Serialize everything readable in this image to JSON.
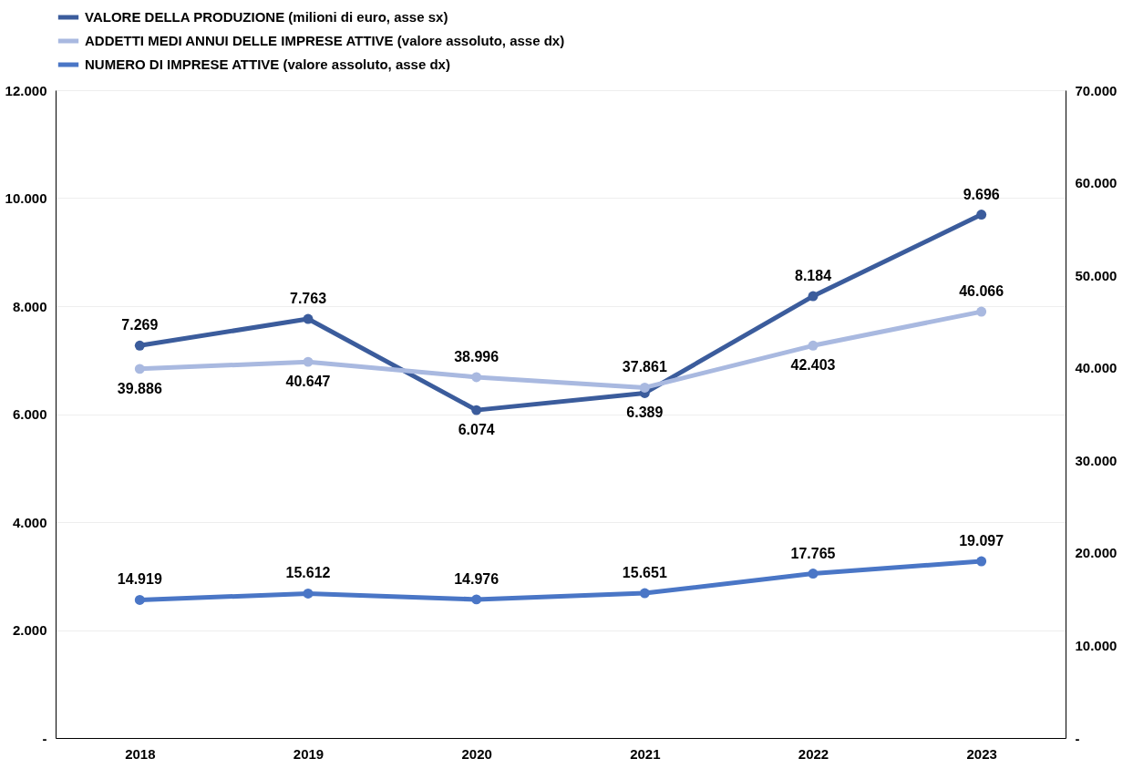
{
  "chart_data": {
    "type": "line",
    "categories": [
      "2018",
      "2019",
      "2020",
      "2021",
      "2022",
      "2023"
    ],
    "series": [
      {
        "name": "VALORE DELLA PRODUZIONE (milioni di euro, asse sx)",
        "color": "#3b5c9c",
        "values": [
          7269,
          7763,
          6074,
          6389,
          8184,
          9696
        ],
        "value_labels": [
          "7.269",
          "7.763",
          "6.074",
          "6.389",
          "8.184",
          "9.696"
        ]
      },
      {
        "name": "ADDETTI MEDI ANNUI DELLE IMPRESE ATTIVE (valore assoluto, asse dx)",
        "color": "#a9b9e0",
        "axis": "y2",
        "values": [
          39886,
          40647,
          38996,
          37861,
          42403,
          46066
        ],
        "value_labels": [
          "39.886",
          "40.647",
          "38.996",
          "37.861",
          "42.403",
          "46.066"
        ]
      },
      {
        "name": "NUMERO DI IMPRESE ATTIVE (valore assoluto, asse dx)",
        "color": "#4a76c6",
        "axis": "y2",
        "values": [
          14919,
          15612,
          14976,
          15651,
          17765,
          19097
        ],
        "value_labels": [
          "14.919",
          "15.612",
          "14.976",
          "15.651",
          "17.765",
          "19.097"
        ]
      }
    ],
    "ylim": [
      0,
      12000
    ],
    "yticks": [
      {
        "value": 0,
        "label": "-"
      },
      {
        "value": 2000,
        "label": "2.000"
      },
      {
        "value": 4000,
        "label": "4.000"
      },
      {
        "value": 6000,
        "label": "6.000"
      },
      {
        "value": 8000,
        "label": "8.000"
      },
      {
        "value": 10000,
        "label": "10.000"
      },
      {
        "value": 12000,
        "label": "12.000"
      }
    ],
    "y2lim": [
      0,
      70000
    ],
    "y2ticks": [
      {
        "value": 0,
        "label": "-"
      },
      {
        "value": 10000,
        "label": "10.000"
      },
      {
        "value": 20000,
        "label": "20.000"
      },
      {
        "value": 30000,
        "label": "30.000"
      },
      {
        "value": 40000,
        "label": "40.000"
      },
      {
        "value": 50000,
        "label": "50.000"
      },
      {
        "value": 60000,
        "label": "60.000"
      },
      {
        "value": 70000,
        "label": "70.000"
      }
    ],
    "grid": "y",
    "legend": "top",
    "data_labels": true,
    "marker": "circle",
    "line_style": "solid"
  }
}
